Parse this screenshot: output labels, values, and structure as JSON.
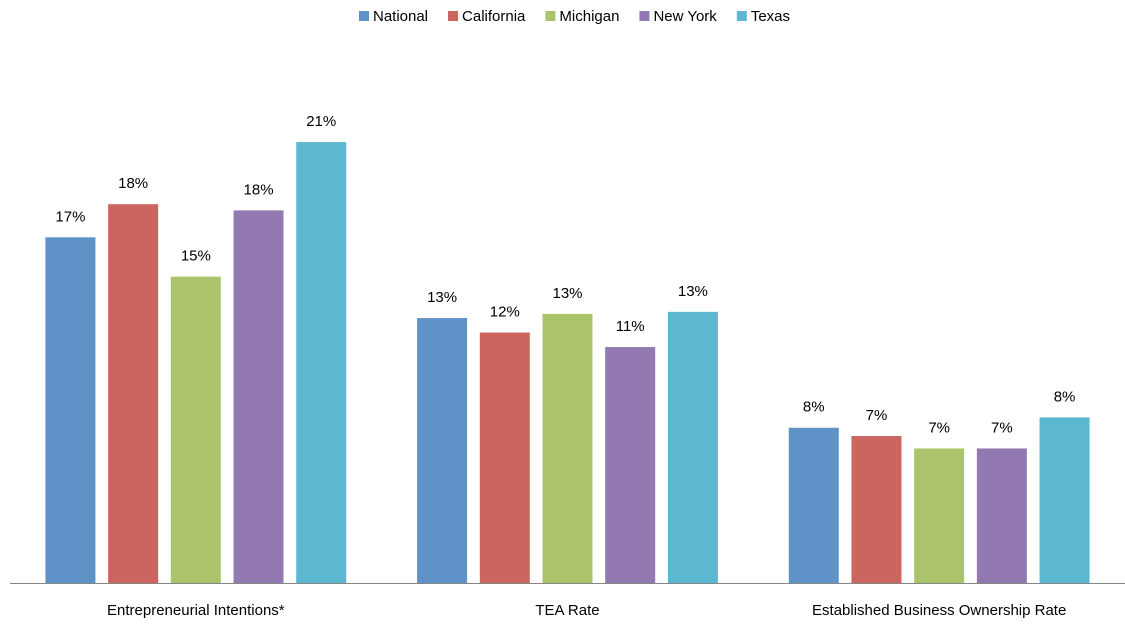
{
  "chart_data": {
    "type": "bar",
    "categories": [
      "Entrepreneurial Intentions*",
      "TEA Rate",
      "Established Business Ownership Rate"
    ],
    "series": [
      {
        "name": "National",
        "color": "#5f93c8",
        "values": [
          16.7,
          12.8,
          7.5
        ],
        "value_labels": [
          "17%",
          "13%",
          "8%"
        ]
      },
      {
        "name": "California",
        "color": "#cc6560",
        "values": [
          18.3,
          12.1,
          7.1
        ],
        "value_labels": [
          "18%",
          "12%",
          "7%"
        ]
      },
      {
        "name": "Michigan",
        "color": "#abc46b",
        "values": [
          14.8,
          13.0,
          6.5
        ],
        "value_labels": [
          "15%",
          "13%",
          "7%"
        ]
      },
      {
        "name": "New York",
        "color": "#9379b1",
        "values": [
          18.0,
          11.4,
          6.5
        ],
        "value_labels": [
          "18%",
          "11%",
          "7%"
        ]
      },
      {
        "name": "Texas",
        "color": "#5bb8d0",
        "values": [
          21.3,
          13.1,
          8.0
        ],
        "value_labels": [
          "21%",
          "13%",
          "8%"
        ]
      }
    ],
    "ylim": [
      0,
      22
    ],
    "legend": "top"
  }
}
